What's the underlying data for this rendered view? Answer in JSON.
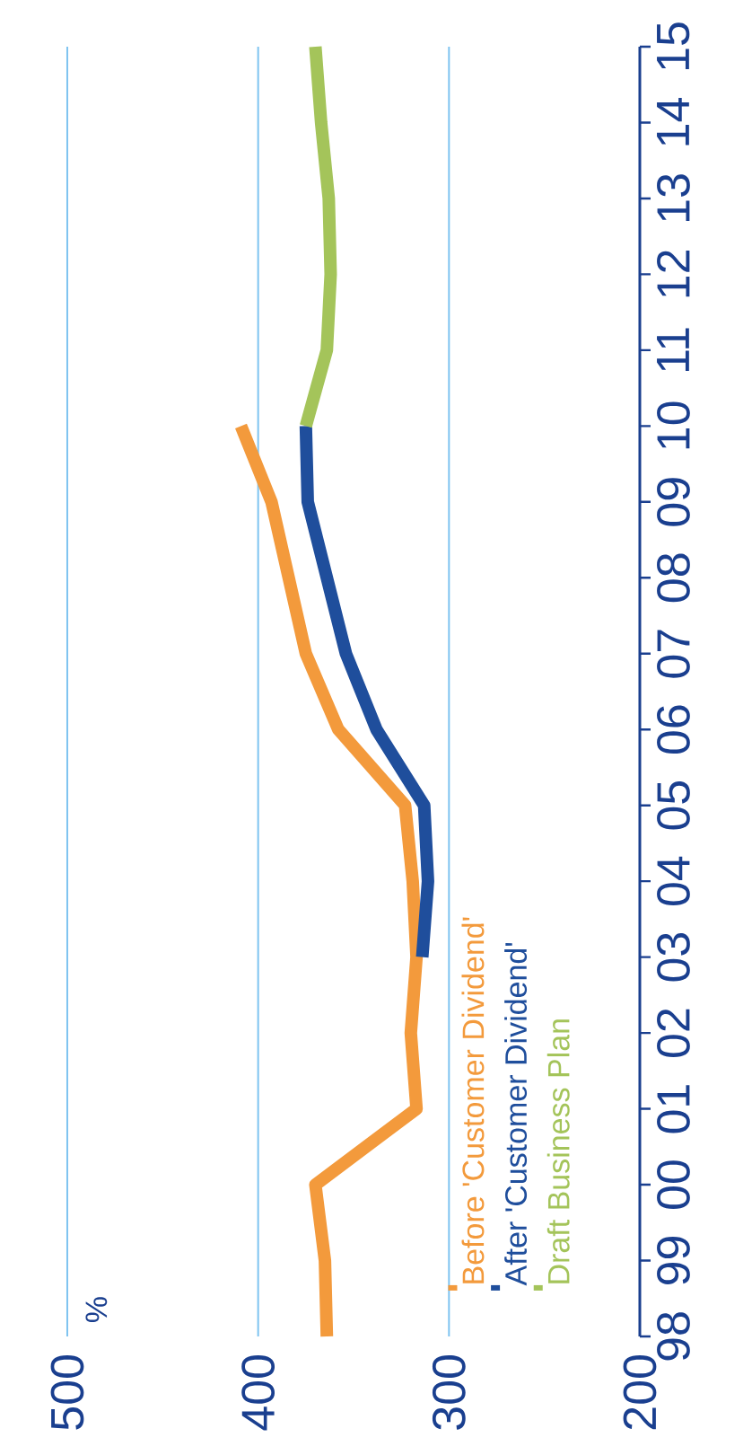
{
  "chart_data": {
    "type": "line",
    "annotations": [
      "%"
    ],
    "series": [
      {
        "name": "Before 'Customer Dividend'",
        "color": "#f39a3c",
        "x": [
          364,
          365,
          370,
          317,
          320,
          317,
          319,
          323,
          358,
          375,
          384,
          393,
          409
        ],
        "values": [
          1998,
          1999,
          2000,
          2001,
          2002,
          2003,
          2004,
          2005,
          2006,
          2007,
          2008,
          2009,
          2010
        ]
      },
      {
        "name": "After 'Customer Dividend'",
        "color": "#1f4e9c",
        "x": [
          314,
          311,
          313,
          338,
          354,
          364,
          374,
          375
        ],
        "values": [
          2003,
          2004,
          2005,
          2006,
          2007,
          2008,
          2009,
          2010
        ]
      },
      {
        "name": "Draft Business Plan",
        "color": "#a4c45a",
        "x": [
          375,
          364,
          362,
          363,
          367,
          370
        ],
        "values": [
          2010,
          2011,
          2012,
          2013,
          2014,
          2015
        ]
      }
    ],
    "xlim": [
      500,
      200
    ],
    "ylim": [
      1998,
      2015
    ],
    "xticks": [
      200,
      300,
      400,
      500
    ],
    "yticks": [
      {
        "value": 1998,
        "label": "98"
      },
      {
        "value": 1999,
        "label": "99"
      },
      {
        "value": 2000,
        "label": "00"
      },
      {
        "value": 2001,
        "label": "01"
      },
      {
        "value": 2002,
        "label": "02"
      },
      {
        "value": 2003,
        "label": "03"
      },
      {
        "value": 2004,
        "label": "04"
      },
      {
        "value": 2005,
        "label": "05"
      },
      {
        "value": 2006,
        "label": "06"
      },
      {
        "value": 2007,
        "label": "07"
      },
      {
        "value": 2008,
        "label": "08"
      },
      {
        "value": 2009,
        "label": "09"
      },
      {
        "value": 2010,
        "label": "10"
      },
      {
        "value": 2011,
        "label": "11"
      },
      {
        "value": 2012,
        "label": "12"
      },
      {
        "value": 2013,
        "label": "13"
      },
      {
        "value": 2014,
        "label": "14"
      },
      {
        "value": 2015,
        "label": "15"
      }
    ],
    "grid": "x",
    "legend": "bottom right",
    "marker": "none",
    "line_style": "solid"
  }
}
